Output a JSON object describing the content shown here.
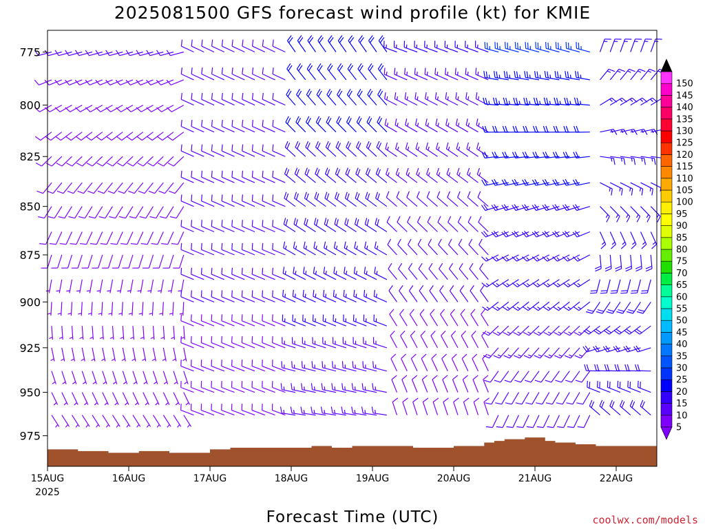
{
  "title": "2025081500 GFS forecast wind profile (kt) for KMIE",
  "credit": "coolwx.com/models",
  "chart_data": {
    "type": "wind_barb_time_height",
    "title": "2025081500 GFS forecast wind profile (kt) for KMIE",
    "xlabel": "Forecast Time (UTC)",
    "ylabel": "",
    "y_ticks": [
      "775",
      "800",
      "825",
      "850",
      "875",
      "900",
      "925",
      "950",
      "975"
    ],
    "y_range": [
      765,
      993
    ],
    "y_scale": "log-pressure (inverted)",
    "x_ticks": [
      "15AUG",
      "16AUG",
      "17AUG",
      "18AUG",
      "19AUG",
      "20AUG",
      "21AUG",
      "22AUG"
    ],
    "x_year_label": "2025",
    "x_range_days": [
      0,
      7.5
    ],
    "levels_hpa": [
      775,
      788,
      800,
      813,
      825,
      838,
      850,
      863,
      875,
      888,
      900,
      913,
      925,
      938,
      950,
      963,
      975
    ],
    "time_step_hours": 3,
    "wind_segments": [
      {
        "start_hour": 0,
        "end_hour": 42,
        "lowest_level_hpa": 963,
        "dir_deg": [
          255,
          140
        ],
        "speed_kt": [
          10,
          5
        ]
      },
      {
        "start_hour": 42,
        "end_hour": 72,
        "lowest_level_hpa": 963,
        "dir_deg": [
          295,
          290
        ],
        "speed_kt": [
          12,
          9
        ]
      },
      {
        "start_hour": 72,
        "end_hour": 102,
        "lowest_level_hpa": 963,
        "dir_deg": [
          325,
          275
        ],
        "speed_kt": [
          22,
          12
        ]
      },
      {
        "start_hour": 102,
        "end_hour": 132,
        "lowest_level_hpa": 963,
        "dir_deg": [
          290,
          345
        ],
        "speed_kt": [
          15,
          7
        ]
      },
      {
        "start_hour": 132,
        "end_hour": 162,
        "lowest_level_hpa": 963,
        "dir_deg": [
          285,
          200
        ],
        "speed_kt": [
          25,
          9
        ]
      },
      {
        "start_hour": 162,
        "end_hour": 180,
        "lowest_level_hpa": 963,
        "dir_deg": [
          20,
          330
        ],
        "speed_kt": [
          15,
          20
        ]
      }
    ],
    "terrain_hpa": [
      [
        0,
        983
      ],
      [
        9,
        984
      ],
      [
        18,
        985
      ],
      [
        27,
        984
      ],
      [
        36,
        985
      ],
      [
        45,
        985
      ],
      [
        48,
        983
      ],
      [
        54,
        982
      ],
      [
        60,
        982
      ],
      [
        72,
        982
      ],
      [
        78,
        981
      ],
      [
        84,
        982
      ],
      [
        90,
        981
      ],
      [
        96,
        981
      ],
      [
        102,
        981
      ],
      [
        108,
        982
      ],
      [
        114,
        982
      ],
      [
        120,
        981
      ],
      [
        126,
        981
      ],
      [
        129,
        979
      ],
      [
        132,
        978
      ],
      [
        135,
        977
      ],
      [
        141,
        976
      ],
      [
        147,
        978
      ],
      [
        150,
        979
      ],
      [
        156,
        980
      ],
      [
        162,
        981
      ],
      [
        168,
        981
      ],
      [
        174,
        981
      ],
      [
        180,
        981
      ]
    ],
    "terrain_color": "#a0522d",
    "colorbar": {
      "unit": "kt",
      "ticks": [
        5,
        10,
        15,
        20,
        25,
        30,
        35,
        40,
        45,
        50,
        55,
        60,
        65,
        70,
        75,
        80,
        85,
        90,
        95,
        100,
        105,
        110,
        115,
        120,
        125,
        130,
        135,
        140,
        145,
        150
      ],
      "colors": [
        "#7f00ff",
        "#5a00ff",
        "#3300ff",
        "#0000ff",
        "#0033ff",
        "#0055ff",
        "#0077ff",
        "#0099ff",
        "#00bbff",
        "#00ddee",
        "#00ffcc",
        "#00ff99",
        "#00ee44",
        "#22dd00",
        "#66ee00",
        "#aaff00",
        "#ddff00",
        "#ffff00",
        "#ffee00",
        "#ffcc00",
        "#ffaa00",
        "#ff8800",
        "#ff6600",
        "#ff3300",
        "#ff0000",
        "#ff0033",
        "#ff0066",
        "#ff0099",
        "#ff00cc",
        "#ff33ff"
      ],
      "min_arrow_color": "#7f00ff",
      "max_arrow_color": "#000000"
    }
  }
}
